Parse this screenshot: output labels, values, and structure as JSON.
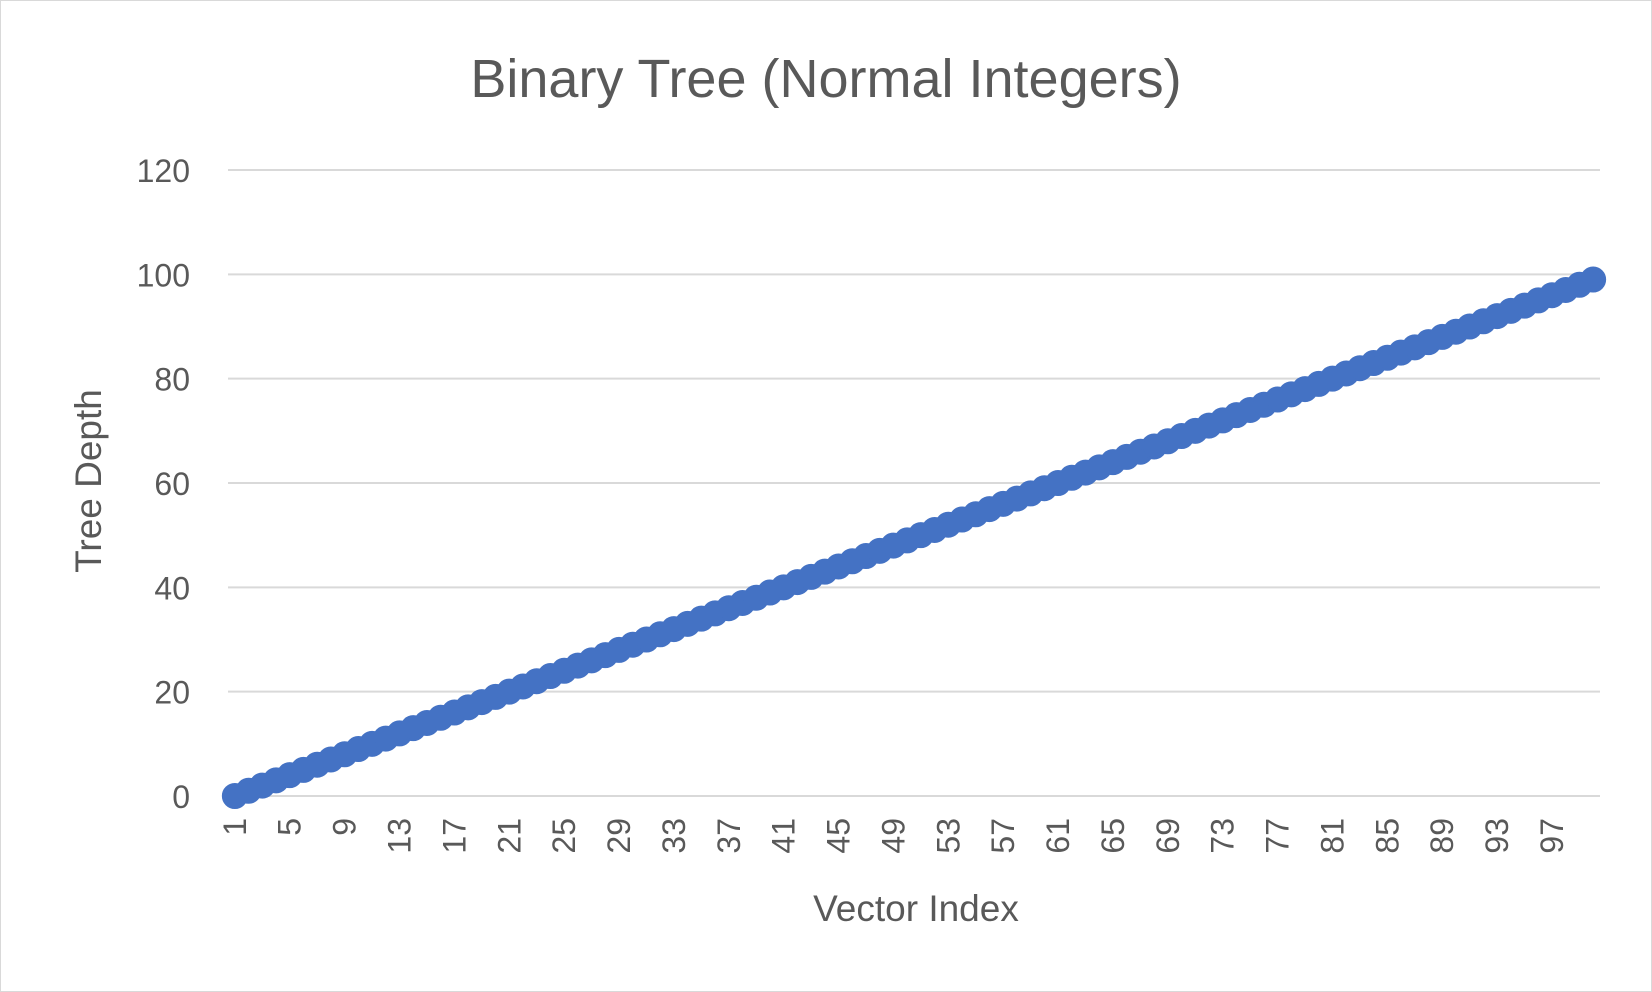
{
  "chart_data": {
    "type": "line",
    "title": "Binary Tree (Normal Integers)",
    "xlabel": "Vector Index",
    "ylabel": "Tree Depth",
    "x_start": 1,
    "x_end": 100,
    "x_tick_labels": [
      "1",
      "5",
      "9",
      "13",
      "17",
      "21",
      "25",
      "29",
      "33",
      "37",
      "41",
      "45",
      "49",
      "53",
      "57",
      "61",
      "65",
      "69",
      "73",
      "77",
      "81",
      "85",
      "89",
      "93",
      "97"
    ],
    "y_ticks": [
      0,
      20,
      40,
      60,
      80,
      100,
      120
    ],
    "ylim": [
      0,
      120
    ],
    "grid": true,
    "legend": "none",
    "series": [
      {
        "color": "#4472c4",
        "markers": true,
        "values": [
          0,
          1,
          2,
          3,
          4,
          5,
          6,
          7,
          8,
          9,
          10,
          11,
          12,
          13,
          14,
          15,
          16,
          17,
          18,
          19,
          20,
          21,
          22,
          23,
          24,
          25,
          26,
          27,
          28,
          29,
          30,
          31,
          32,
          33,
          34,
          35,
          36,
          37,
          38,
          39,
          40,
          41,
          42,
          43,
          44,
          45,
          46,
          47,
          48,
          49,
          50,
          51,
          52,
          53,
          54,
          55,
          56,
          57,
          58,
          59,
          60,
          61,
          62,
          63,
          64,
          65,
          66,
          67,
          68,
          69,
          70,
          71,
          72,
          73,
          74,
          75,
          76,
          77,
          78,
          79,
          80,
          81,
          82,
          83,
          84,
          85,
          86,
          87,
          88,
          89,
          90,
          91,
          92,
          93,
          94,
          95,
          96,
          97,
          98,
          99
        ]
      }
    ]
  }
}
